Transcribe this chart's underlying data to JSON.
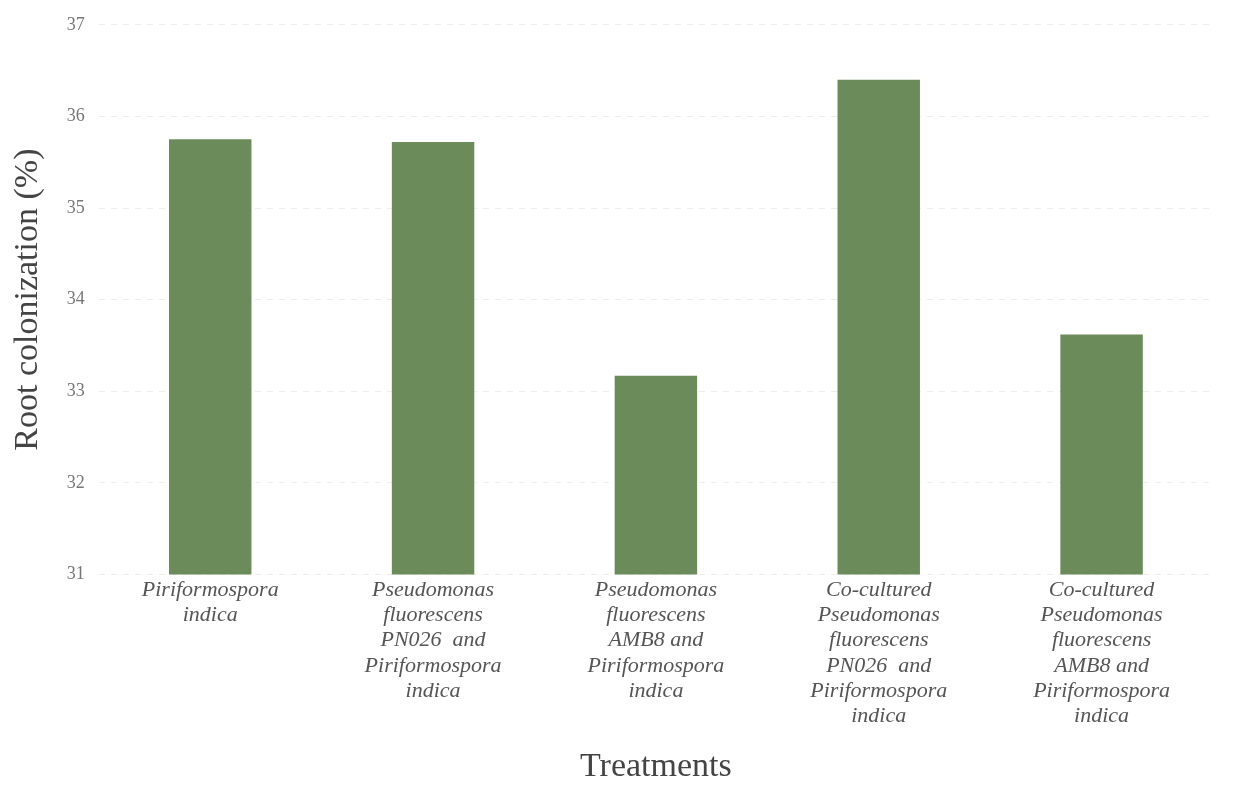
{
  "chart_data": {
    "type": "bar",
    "xlabel": "Treatments",
    "ylabel": "Root colonization (%)",
    "categories": [
      "Piriformospora indica",
      "Pseudomonas fluorescens PN026  and Piriformospora indica",
      "Pseudomonas fluorescens AMB8 and Piriformospora indica",
      "Co-cultured Pseudomonas fluorescens PN026  and Piriformospora indica",
      "Co-cultured Pseudomonas fluorescens AMB8 and Piriformospora indica"
    ],
    "values": [
      35.75,
      35.72,
      33.17,
      36.4,
      33.62
    ],
    "color": "#6b8c5a",
    "ylim": [
      31,
      37
    ],
    "yticks": [
      31,
      32,
      33,
      34,
      35,
      36,
      37
    ],
    "grid": "y"
  }
}
